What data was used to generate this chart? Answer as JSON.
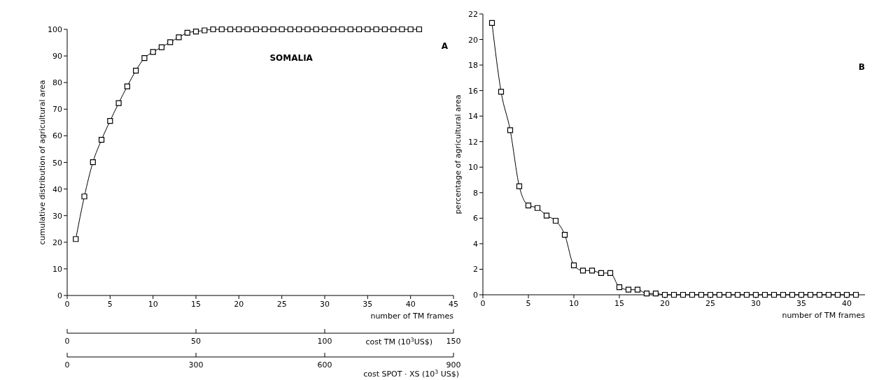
{
  "chart_data": [
    {
      "type": "line",
      "marker": "square",
      "line_style": "solid",
      "grid": false,
      "legend": false,
      "xlabel": "number of TM frames",
      "ylabel": "cumulative distribution of agricultural area",
      "annotations": [
        "SOMALIA",
        "A",
        "cost SPOT · XS (10$^{3}$ US$)",
        "0",
        "300",
        "600",
        "900"
      ],
      "x": [
        1,
        2,
        3,
        4,
        5,
        6,
        7,
        8,
        9,
        10,
        11,
        12,
        13,
        14,
        15,
        16,
        17,
        18,
        19,
        20,
        21,
        22,
        23,
        24,
        25,
        26,
        27,
        28,
        29,
        30,
        31,
        32,
        33,
        34,
        35,
        36,
        37,
        38,
        39,
        40,
        41
      ],
      "series": [
        {
          "color": "#000000",
          "values": [
            21.2,
            37.2,
            50.1,
            58.5,
            65.6,
            72.3,
            78.6,
            84.5,
            89.2,
            91.5,
            93.3,
            95.2,
            97.0,
            98.7,
            99.2,
            99.6,
            100,
            100,
            100,
            100,
            100,
            100,
            100,
            100,
            100,
            100,
            100,
            100,
            100,
            100,
            100,
            100,
            100,
            100,
            100,
            100,
            100,
            100,
            100,
            100,
            100
          ]
        }
      ],
      "xlim": [
        0,
        45
      ],
      "xticks": [
        0,
        5,
        10,
        15,
        20,
        25,
        30,
        35,
        40,
        45
      ],
      "ylim": [
        0,
        100
      ],
      "yticks": [
        0,
        10,
        20,
        30,
        40,
        50,
        60,
        70,
        80,
        90,
        100
      ],
      "x2lim": [
        0,
        150
      ],
      "x2ticks": [
        0,
        50,
        100,
        150
      ],
      "x2label": "cost TM (10$^{3}$US$)"
    },
    {
      "type": "line",
      "marker": "square",
      "line_style": "solid",
      "grid": false,
      "legend": false,
      "xlabel": "number of TM frames",
      "ylabel": "percentage of agricultural area",
      "annotations": [
        "B"
      ],
      "x": [
        1,
        2,
        3,
        4,
        5,
        6,
        7,
        8,
        9,
        10,
        11,
        12,
        13,
        14,
        15,
        16,
        17,
        18,
        19,
        20,
        21,
        22,
        23,
        24,
        25,
        26,
        27,
        28,
        29,
        30,
        31,
        32,
        33,
        34,
        35,
        36,
        37,
        38,
        39,
        40,
        41
      ],
      "series": [
        {
          "color": "#000000",
          "values": [
            21.3,
            15.9,
            12.9,
            8.5,
            7.0,
            6.8,
            6.2,
            5.8,
            4.7,
            2.3,
            1.9,
            1.9,
            1.7,
            1.7,
            0.6,
            0.4,
            0.4,
            0.1,
            0.1,
            0,
            0,
            0,
            0,
            0,
            0,
            0,
            0,
            0,
            0,
            0,
            0,
            0,
            0,
            0,
            0,
            0,
            0,
            0,
            0,
            0,
            0
          ]
        }
      ],
      "xlim": [
        0,
        42
      ],
      "xticks": [
        0,
        5,
        10,
        15,
        20,
        25,
        30,
        35,
        40
      ],
      "ylim": [
        0,
        22
      ],
      "yticks": [
        0,
        2,
        4,
        6,
        8,
        10,
        12,
        14,
        16,
        18,
        20,
        22
      ]
    }
  ]
}
